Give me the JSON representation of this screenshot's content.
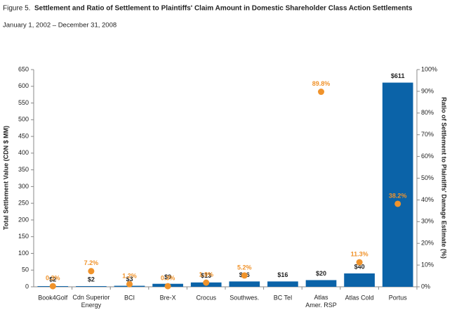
{
  "chart_data": {
    "type": "bar",
    "figure_label": "Figure 5.",
    "title": "Settlement and Ratio of Settlement to Plaintiffs' Claim Amount in Domestic Shareholder Class Action Settlements",
    "subtitle": "January 1, 2002 – December 31, 2008",
    "y_label": "Total Settlement Value (CDN $ MM)",
    "y2_label": "Ratio of Settlement to Plaintiffs' Damage Estimate (%)",
    "categories": [
      "Book4Golf",
      "Cdn Superior\nEnergy",
      "BCI",
      "Bre-X",
      "Crocus",
      "Southwes.",
      "BC Tel",
      "Atlas\nAmer. RSP",
      "Atlas Cold",
      "Portus"
    ],
    "series": [
      {
        "type": "bar",
        "color": "#0b63a8",
        "values": [
          2,
          2,
          3,
          9,
          13,
          16,
          16,
          20,
          40,
          611
        ],
        "value_labels": [
          "$2",
          "$2",
          "$3",
          "$9",
          "$13",
          "$16",
          "$16",
          "$20",
          "$40",
          "$611"
        ]
      },
      {
        "type": "scatter",
        "axis": "y2",
        "color": "#f0932b",
        "values": [
          0.3,
          7.2,
          1.2,
          0.3,
          1.9,
          5.2,
          null,
          89.8,
          11.3,
          38.2
        ],
        "value_labels": [
          "0.3%",
          "7.2%",
          "1.2%",
          "0.3%",
          "1.9%",
          "5.2%",
          null,
          "89.8%",
          "11.3%",
          "38.2%"
        ]
      }
    ],
    "ylim": [
      0,
      650
    ],
    "yticks": [
      0,
      50,
      100,
      150,
      200,
      250,
      300,
      350,
      400,
      450,
      500,
      550,
      600,
      650
    ],
    "y2lim": [
      0,
      100
    ],
    "y2ticks": [
      {
        "value": 0,
        "label": "0%"
      },
      {
        "value": 10,
        "label": "10%"
      },
      {
        "value": 20,
        "label": "20%"
      },
      {
        "value": 30,
        "label": "30%"
      },
      {
        "value": 40,
        "label": "40%"
      },
      {
        "value": 50,
        "label": "50%"
      },
      {
        "value": 60,
        "label": "60%"
      },
      {
        "value": 70,
        "label": "70%"
      },
      {
        "value": 80,
        "label": "80%"
      },
      {
        "value": 90,
        "label": "90%"
      },
      {
        "value": 100,
        "label": "100%"
      }
    ],
    "grid": false
  }
}
